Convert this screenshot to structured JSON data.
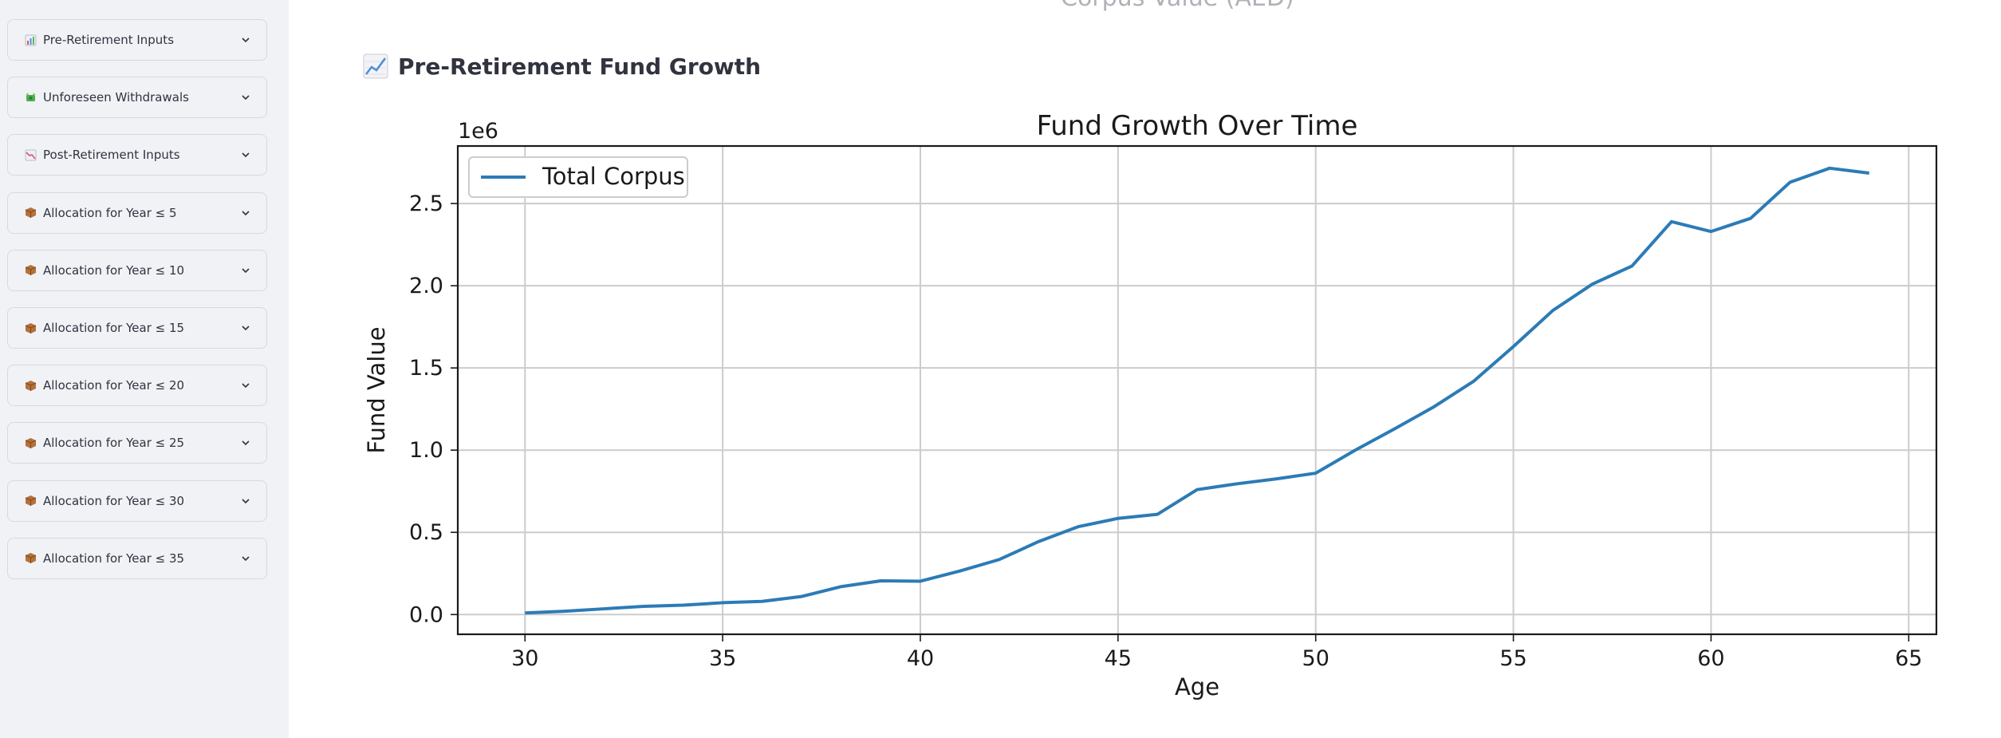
{
  "sidebar": {
    "expanders": [
      {
        "label": "Pre-Retirement Inputs",
        "icon": "bar-chart-icon"
      },
      {
        "label": "Unforeseen Withdrawals",
        "icon": "money-with-wings-icon"
      },
      {
        "label": "Post-Retirement Inputs",
        "icon": "chart-decreasing-icon"
      },
      {
        "label": "Allocation for Year ≤ 5",
        "icon": "package-icon"
      },
      {
        "label": "Allocation for Year ≤ 10",
        "icon": "package-icon"
      },
      {
        "label": "Allocation for Year ≤ 15",
        "icon": "package-icon"
      },
      {
        "label": "Allocation for Year ≤ 20",
        "icon": "package-icon"
      },
      {
        "label": "Allocation for Year ≤ 25",
        "icon": "package-icon"
      },
      {
        "label": "Allocation for Year ≤ 30",
        "icon": "package-icon"
      },
      {
        "label": "Allocation for Year ≤ 35",
        "icon": "package-icon"
      }
    ]
  },
  "main": {
    "cut_off_title": "Corpus Value (AED)",
    "section_title": "Pre-Retirement Fund Growth",
    "section_icon": "chart-increasing-icon"
  },
  "colors": {
    "sidebar_bg": "#f0f2f6",
    "line": "#2c7bb6",
    "text": "#31333f"
  },
  "chart_data": {
    "type": "line",
    "title": "Fund Growth Over Time",
    "xlabel": "Age",
    "ylabel": "Fund Value",
    "offset_text": "1e6",
    "xlim": [
      28.3,
      65.7
    ],
    "ylim": [
      -0.12,
      2.85
    ],
    "xticks": [
      30,
      35,
      40,
      45,
      50,
      55,
      60,
      65
    ],
    "yticks": [
      0.0,
      0.5,
      1.0,
      1.5,
      2.0,
      2.5
    ],
    "ytick_labels": [
      "0.0",
      "0.5",
      "1.0",
      "1.5",
      "2.0",
      "2.5"
    ],
    "grid": true,
    "legend_position": "top-left",
    "series": [
      {
        "name": "Total Corpus",
        "x": [
          30,
          31,
          32,
          33,
          34,
          35,
          36,
          37,
          38,
          39,
          40,
          41,
          42,
          43,
          44,
          45,
          46,
          47,
          48,
          49,
          50,
          51,
          52,
          53,
          54,
          55,
          56,
          57,
          58,
          59,
          60,
          61,
          62,
          63,
          64
        ],
        "y": [
          0.01,
          0.02,
          0.035,
          0.05,
          0.057,
          0.072,
          0.08,
          0.11,
          0.17,
          0.205,
          0.203,
          0.265,
          0.335,
          0.445,
          0.535,
          0.585,
          0.61,
          0.76,
          0.795,
          0.825,
          0.86,
          1.0,
          1.13,
          1.265,
          1.42,
          1.63,
          1.85,
          2.01,
          2.12,
          2.39,
          2.33,
          2.41,
          2.63,
          2.715,
          2.685
        ]
      }
    ]
  }
}
